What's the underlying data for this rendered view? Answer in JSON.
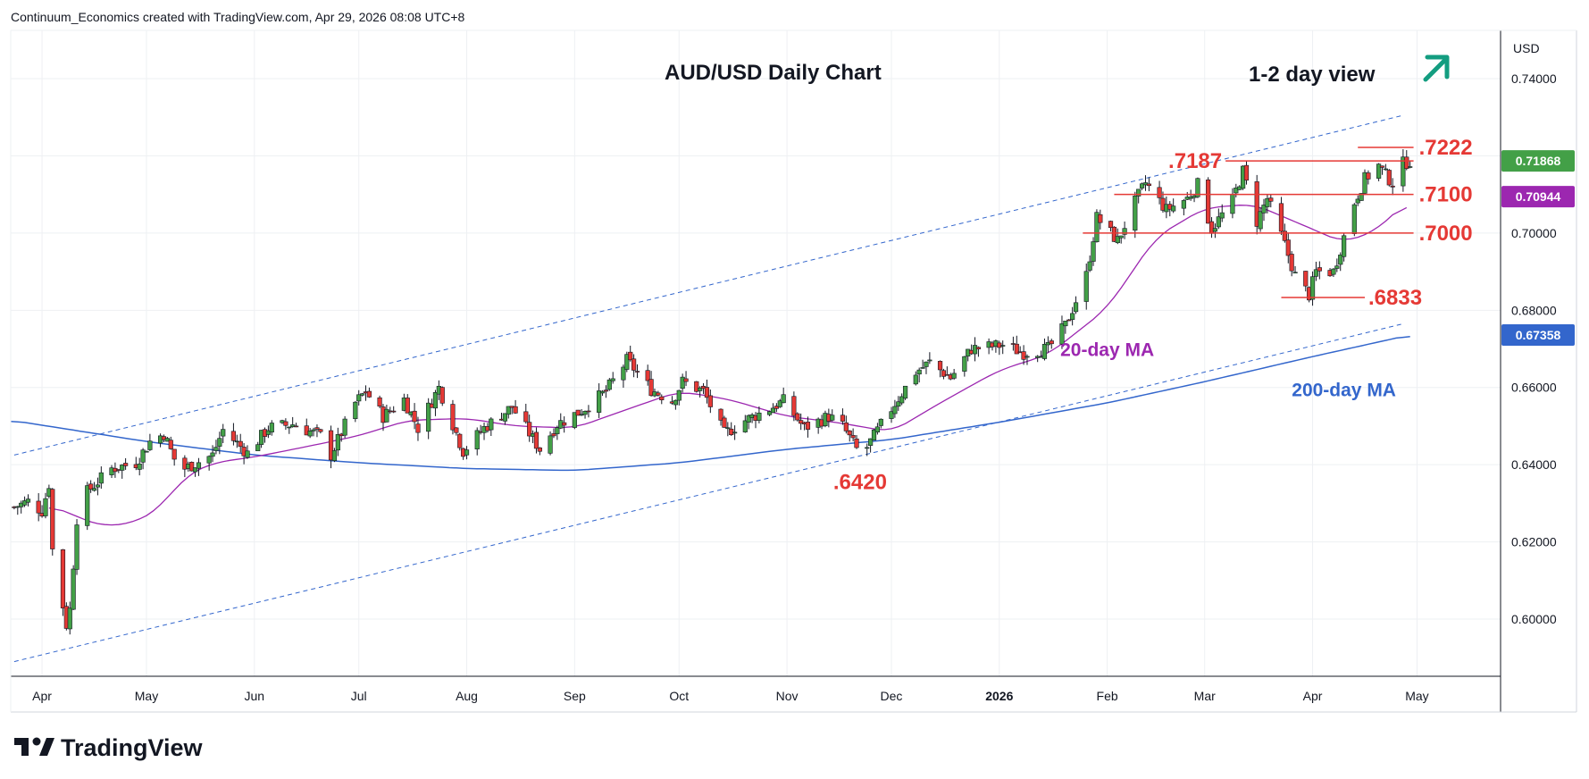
{
  "header": {
    "attribution": "Continuum_Economics created with TradingView.com, Apr 29, 2026 08:08 UTC+8"
  },
  "brand": {
    "name": "TradingView"
  },
  "currency_label": "USD",
  "colors": {
    "up_candle": "#43a047",
    "down_candle": "#e53935",
    "ma20": "#9c27b0",
    "ma200": "#3366cc",
    "channel": "#3366cc",
    "levels": "#e53935",
    "arrow": "#139d80",
    "grid": "#eef0f3"
  },
  "chart_data": {
    "type": "candlestick",
    "title": "AUD/USD Daily Chart",
    "view": "1-2 day view",
    "view_direction": "up-arrow",
    "y_ticks": [
      "0.74000",
      "0.72000",
      "0.70000",
      "0.68000",
      "0.66000",
      "0.64000",
      "0.62000",
      "0.60000"
    ],
    "y_tick_values": [
      0.74,
      0.72,
      0.7,
      0.68,
      0.66,
      0.64,
      0.62,
      0.6
    ],
    "ylim": [
      0.5852,
      0.7525
    ],
    "x_ticks": [
      "Apr",
      "May",
      "Jun",
      "Jul",
      "Aug",
      "Sep",
      "Oct",
      "Nov",
      "Dec",
      "2026",
      "Feb",
      "Mar",
      "Apr",
      "May"
    ],
    "x_tick_dates": [
      "2025-04-01",
      "2025-05-01",
      "2025-06-01",
      "2025-07-01",
      "2025-08-01",
      "2025-09-01",
      "2025-10-01",
      "2025-11-01",
      "2025-12-01",
      "2026-01-01",
      "2026-02-01",
      "2026-03-01",
      "2026-04-01",
      "2026-05-01"
    ],
    "xlim": [
      "2025-03-23",
      "2026-05-25"
    ],
    "price_path": [
      [
        "2025-03-24",
        0.629
      ],
      [
        "2025-03-28",
        0.6305
      ],
      [
        "2025-04-01",
        0.628
      ],
      [
        "2025-04-03",
        0.635
      ],
      [
        "2025-04-04",
        0.618
      ],
      [
        "2025-04-08",
        0.5985
      ],
      [
        "2025-04-09",
        0.6025
      ],
      [
        "2025-04-11",
        0.626
      ],
      [
        "2025-04-14",
        0.633
      ],
      [
        "2025-04-21",
        0.639
      ],
      [
        "2025-04-28",
        0.6405
      ],
      [
        "2025-05-02",
        0.646
      ],
      [
        "2025-05-06",
        0.648
      ],
      [
        "2025-05-09",
        0.6415
      ],
      [
        "2025-05-12",
        0.639
      ],
      [
        "2025-05-20",
        0.6425
      ],
      [
        "2025-05-23",
        0.649
      ],
      [
        "2025-05-30",
        0.643
      ],
      [
        "2025-06-05",
        0.6495
      ],
      [
        "2025-06-12",
        0.6505
      ],
      [
        "2025-06-20",
        0.6475
      ],
      [
        "2025-06-23",
        0.6425
      ],
      [
        "2025-06-30",
        0.656
      ],
      [
        "2025-07-03",
        0.659
      ],
      [
        "2025-07-08",
        0.6525
      ],
      [
        "2025-07-14",
        0.657
      ],
      [
        "2025-07-18",
        0.6495
      ],
      [
        "2025-07-24",
        0.66
      ],
      [
        "2025-07-31",
        0.6435
      ],
      [
        "2025-08-06",
        0.6495
      ],
      [
        "2025-08-14",
        0.655
      ],
      [
        "2025-08-22",
        0.644
      ],
      [
        "2025-08-27",
        0.6505
      ],
      [
        "2025-09-03",
        0.654
      ],
      [
        "2025-09-10",
        0.659
      ],
      [
        "2025-09-16",
        0.667
      ],
      [
        "2025-09-18",
        0.665
      ],
      [
        "2025-09-23",
        0.6595
      ],
      [
        "2025-09-29",
        0.6565
      ],
      [
        "2025-10-02",
        0.6615
      ],
      [
        "2025-10-08",
        0.659
      ],
      [
        "2025-10-14",
        0.648
      ],
      [
        "2025-10-20",
        0.6515
      ],
      [
        "2025-10-27",
        0.6545
      ],
      [
        "2025-10-31",
        0.6565
      ],
      [
        "2025-11-06",
        0.6495
      ],
      [
        "2025-11-13",
        0.6525
      ],
      [
        "2025-11-17",
        0.65
      ],
      [
        "2025-11-21",
        0.644
      ],
      [
        "2025-11-24",
        0.6445
      ],
      [
        "2025-12-01",
        0.6545
      ],
      [
        "2025-12-08",
        0.664
      ],
      [
        "2025-12-12",
        0.6665
      ],
      [
        "2025-12-18",
        0.6625
      ],
      [
        "2025-12-24",
        0.67
      ],
      [
        "2026-01-02",
        0.671
      ],
      [
        "2026-01-08",
        0.669
      ],
      [
        "2026-01-15",
        0.67
      ],
      [
        "2026-01-20",
        0.676
      ],
      [
        "2026-01-26",
        0.689
      ],
      [
        "2026-01-29",
        0.704
      ],
      [
        "2026-02-04",
        0.698
      ],
      [
        "2026-02-09",
        0.708
      ],
      [
        "2026-02-12",
        0.713
      ],
      [
        "2026-02-18",
        0.706
      ],
      [
        "2026-02-24",
        0.709
      ],
      [
        "2026-02-27",
        0.7125
      ],
      [
        "2026-03-03",
        0.701
      ],
      [
        "2026-03-09",
        0.7085
      ],
      [
        "2026-03-12",
        0.716
      ],
      [
        "2026-03-16",
        0.703
      ],
      [
        "2026-03-19",
        0.709
      ],
      [
        "2026-03-24",
        0.697
      ],
      [
        "2026-03-27",
        0.689
      ],
      [
        "2026-03-31",
        0.684
      ],
      [
        "2026-04-02",
        0.69
      ],
      [
        "2026-04-07",
        0.69
      ],
      [
        "2026-04-09",
        0.696
      ],
      [
        "2026-04-13",
        0.708
      ],
      [
        "2026-04-16",
        0.714
      ],
      [
        "2026-04-20",
        0.7175
      ],
      [
        "2026-04-22",
        0.715
      ],
      [
        "2026-04-24",
        0.713
      ],
      [
        "2026-04-27",
        0.718
      ],
      [
        "2026-04-29",
        0.7187
      ]
    ],
    "ma20_path": [
      [
        "2025-04-03",
        0.6295
      ],
      [
        "2025-04-10",
        0.627
      ],
      [
        "2025-04-18",
        0.624
      ],
      [
        "2025-04-28",
        0.625
      ],
      [
        "2025-05-05",
        0.629
      ],
      [
        "2025-05-12",
        0.637
      ],
      [
        "2025-05-20",
        0.6405
      ],
      [
        "2025-06-01",
        0.642
      ],
      [
        "2025-06-15",
        0.6445
      ],
      [
        "2025-07-01",
        0.6475
      ],
      [
        "2025-07-15",
        0.6515
      ],
      [
        "2025-08-01",
        0.652
      ],
      [
        "2025-08-15",
        0.65
      ],
      [
        "2025-09-01",
        0.6495
      ],
      [
        "2025-09-15",
        0.654
      ],
      [
        "2025-10-01",
        0.659
      ],
      [
        "2025-10-15",
        0.657
      ],
      [
        "2025-11-01",
        0.6525
      ],
      [
        "2025-11-15",
        0.651
      ],
      [
        "2025-12-01",
        0.6485
      ],
      [
        "2025-12-15",
        0.656
      ],
      [
        "2026-01-01",
        0.6645
      ],
      [
        "2026-01-15",
        0.6685
      ],
      [
        "2026-02-01",
        0.6805
      ],
      [
        "2026-02-15",
        0.699
      ],
      [
        "2026-03-01",
        0.7065
      ],
      [
        "2026-03-15",
        0.7075
      ],
      [
        "2026-04-01",
        0.701
      ],
      [
        "2026-04-10",
        0.6975
      ],
      [
        "2026-04-20",
        0.701
      ],
      [
        "2026-04-29",
        0.7094
      ]
    ],
    "ma200_path": [
      [
        "2025-03-23",
        0.6515
      ],
      [
        "2025-05-01",
        0.646
      ],
      [
        "2025-06-01",
        0.6425
      ],
      [
        "2025-07-01",
        0.6405
      ],
      [
        "2025-08-01",
        0.639
      ],
      [
        "2025-09-01",
        0.6385
      ],
      [
        "2025-10-01",
        0.6405
      ],
      [
        "2025-11-01",
        0.644
      ],
      [
        "2025-12-01",
        0.6465
      ],
      [
        "2026-01-01",
        0.651
      ],
      [
        "2026-02-01",
        0.656
      ],
      [
        "2026-03-01",
        0.6615
      ],
      [
        "2026-04-01",
        0.668
      ],
      [
        "2026-04-29",
        0.6736
      ]
    ],
    "channel_upper": [
      [
        "2025-03-24",
        0.6425
      ],
      [
        "2026-04-27",
        0.7305
      ]
    ],
    "channel_lower": [
      [
        "2025-03-24",
        0.589
      ],
      [
        "2026-04-27",
        0.6765
      ]
    ],
    "levels": [
      {
        "label": ".7222",
        "value": 0.7222,
        "from": "2026-04-14",
        "to": "2026-04-30"
      },
      {
        "label": ".7187",
        "value": 0.7187,
        "from": "2026-03-07",
        "to": "2026-04-30"
      },
      {
        "label": ".7100",
        "value": 0.71,
        "from": "2026-02-03",
        "to": "2026-04-30"
      },
      {
        "label": ".7000",
        "value": 0.7,
        "from": "2026-01-25",
        "to": "2026-04-30"
      },
      {
        "label": ".6833",
        "value": 0.6833,
        "from": "2026-03-23",
        "to": "2026-04-16"
      },
      {
        "label": ".6420",
        "value": 0.642,
        "from": null,
        "to": null
      }
    ],
    "ma_labels": [
      {
        "label": "20-day MA",
        "series": "ma20"
      },
      {
        "label": "200-day MA",
        "series": "ma200"
      }
    ],
    "last_values": [
      {
        "label": "0.71868",
        "value": 0.71868,
        "color": "#43a047"
      },
      {
        "label": "0.70944",
        "value": 0.70944,
        "color": "#9c27b0"
      },
      {
        "label": "0.67358",
        "value": 0.67358,
        "color": "#3366cc"
      }
    ]
  }
}
